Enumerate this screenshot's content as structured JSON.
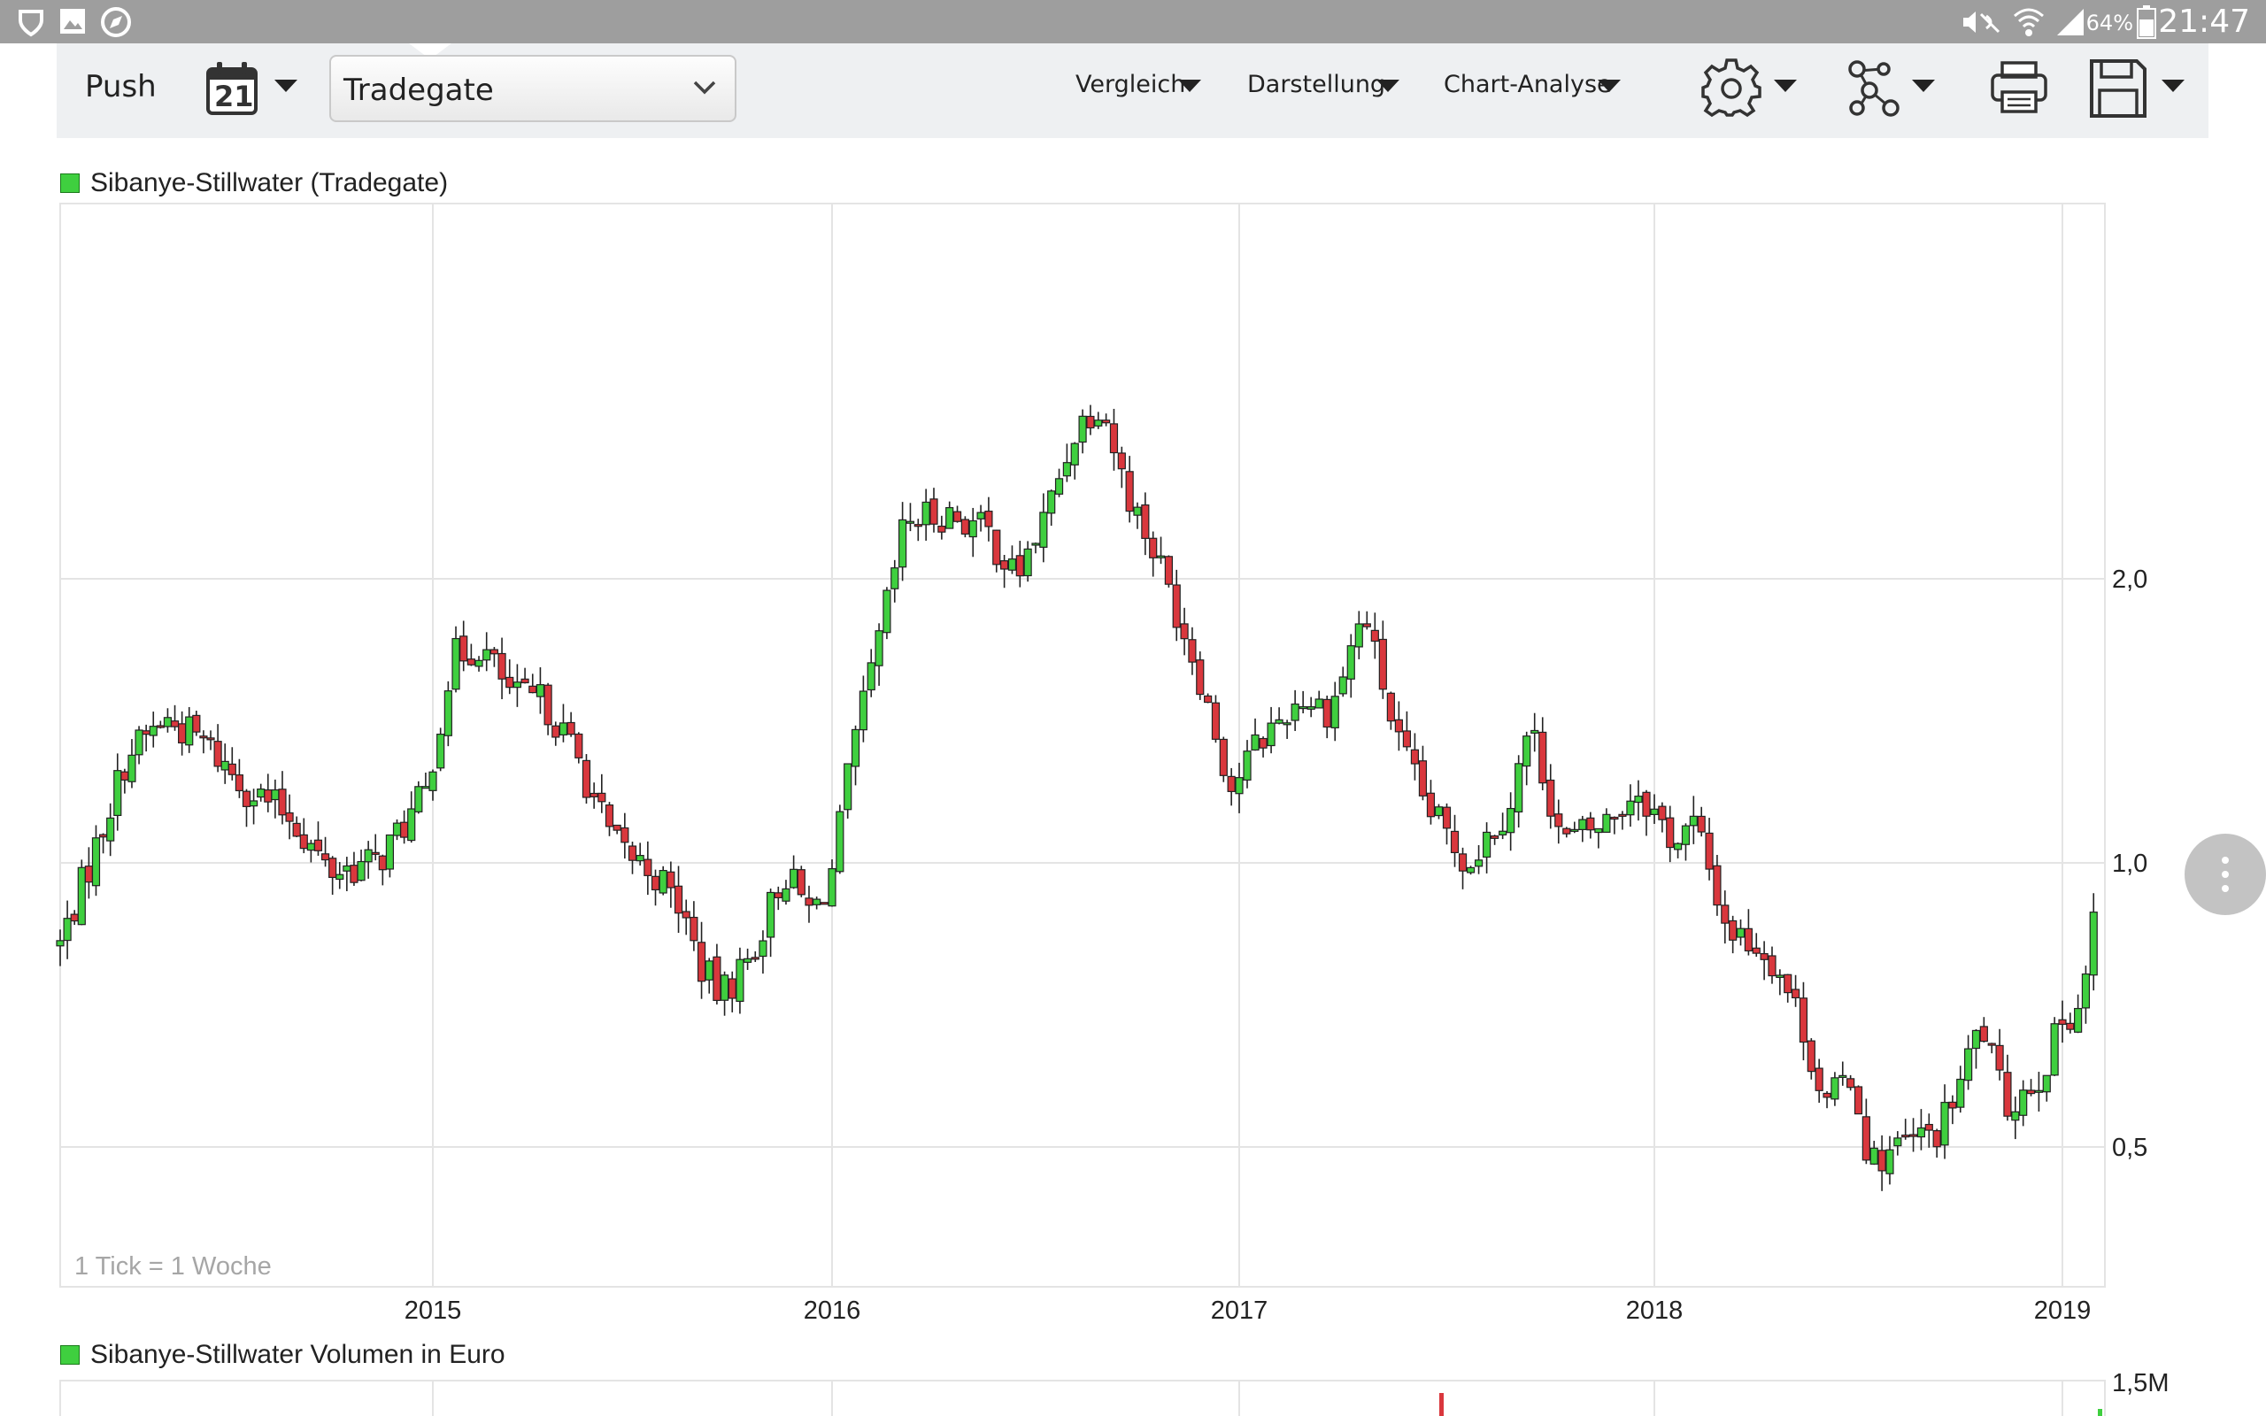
{
  "status_bar": {
    "time": "21:47",
    "battery": "64%",
    "icons": [
      "shield-icon",
      "image-icon",
      "compass-icon",
      "mute-icon",
      "wifi-icon",
      "signal-icon",
      "battery-icon"
    ]
  },
  "toolbar": {
    "push_label": "Push",
    "calendar_icon_text": "21",
    "exchange_value": "Tradegate",
    "vergleich_label": "Vergleich",
    "darstellung_label": "Darstellung",
    "chartanalyse_label": "Chart-Analyse",
    "icons": [
      "gear-icon",
      "network-icon",
      "print-icon",
      "save-icon"
    ]
  },
  "colors": {
    "up": "#3fcf3f",
    "down": "#d9373d",
    "grid": "#e4e4e4",
    "toolbar_bg": "#eef0f2",
    "status_bg": "#9e9e9e"
  },
  "chart_data": [
    {
      "type": "candlestick",
      "legend": "Sibanye-Stillwater (Tradegate)",
      "note": "1 Tick = 1 Woche",
      "y_scale": "log",
      "ylim": [
        0.33,
        6.1
      ],
      "yticks": [
        {
          "value": 0.5,
          "label": "0,5"
        },
        {
          "value": 1.0,
          "label": "1,0"
        },
        {
          "value": 2.0,
          "label": "2,0"
        }
      ],
      "xlim": [
        2014.0,
        2019.11
      ],
      "xticks": [
        {
          "value": 2015,
          "label": "2015"
        },
        {
          "value": 2016,
          "label": "2016"
        },
        {
          "value": 2017,
          "label": "2017"
        },
        {
          "value": 2018,
          "label": "2018"
        },
        {
          "value": 2019,
          "label": "2019"
        }
      ],
      "grid": true,
      "price_anchors": [
        [
          2014.0,
          0.82
        ],
        [
          2014.1,
          1.05
        ],
        [
          2014.18,
          1.3
        ],
        [
          2014.28,
          1.42
        ],
        [
          2014.38,
          1.35
        ],
        [
          2014.5,
          1.2
        ],
        [
          2014.62,
          1.12
        ],
        [
          2014.72,
          0.98
        ],
        [
          2014.85,
          1.0
        ],
        [
          2014.98,
          1.18
        ],
        [
          2015.05,
          1.65
        ],
        [
          2015.12,
          1.7
        ],
        [
          2015.2,
          1.5
        ],
        [
          2015.28,
          1.48
        ],
        [
          2015.36,
          1.3
        ],
        [
          2015.45,
          1.05
        ],
        [
          2015.55,
          0.98
        ],
        [
          2015.62,
          0.9
        ],
        [
          2015.67,
          0.78
        ],
        [
          2015.72,
          0.72
        ],
        [
          2015.8,
          0.8
        ],
        [
          2015.88,
          0.98
        ],
        [
          2015.95,
          0.88
        ],
        [
          2016.0,
          0.98
        ],
        [
          2016.05,
          1.3
        ],
        [
          2016.12,
          1.75
        ],
        [
          2016.18,
          2.3
        ],
        [
          2016.28,
          2.35
        ],
        [
          2016.38,
          2.25
        ],
        [
          2016.45,
          2.0
        ],
        [
          2016.52,
          2.3
        ],
        [
          2016.6,
          2.9
        ],
        [
          2016.66,
          3.1
        ],
        [
          2016.72,
          2.5
        ],
        [
          2016.8,
          2.1
        ],
        [
          2016.9,
          1.6
        ],
        [
          2016.98,
          1.2
        ],
        [
          2017.05,
          1.35
        ],
        [
          2017.15,
          1.5
        ],
        [
          2017.22,
          1.45
        ],
        [
          2017.3,
          1.85
        ],
        [
          2017.38,
          1.35
        ],
        [
          2017.45,
          1.15
        ],
        [
          2017.55,
          1.0
        ],
        [
          2017.65,
          1.15
        ],
        [
          2017.7,
          1.4
        ],
        [
          2017.78,
          1.05
        ],
        [
          2017.88,
          1.1
        ],
        [
          2017.96,
          1.2
        ],
        [
          2018.05,
          1.05
        ],
        [
          2018.1,
          1.1
        ],
        [
          2018.18,
          0.85
        ],
        [
          2018.25,
          0.82
        ],
        [
          2018.3,
          0.78
        ],
        [
          2018.36,
          0.68
        ],
        [
          2018.42,
          0.55
        ],
        [
          2018.48,
          0.6
        ],
        [
          2018.53,
          0.48
        ],
        [
          2018.6,
          0.5
        ],
        [
          2018.7,
          0.52
        ],
        [
          2018.76,
          0.6
        ],
        [
          2018.8,
          0.68
        ],
        [
          2018.86,
          0.55
        ],
        [
          2018.95,
          0.6
        ],
        [
          2019.0,
          0.68
        ],
        [
          2019.05,
          0.72
        ],
        [
          2019.09,
          0.95
        ]
      ]
    },
    {
      "type": "bar",
      "legend": "Sibanye-Stillwater Volumen in Euro",
      "yticks": [
        {
          "value": 1500000,
          "label": "1,5M"
        }
      ]
    }
  ]
}
